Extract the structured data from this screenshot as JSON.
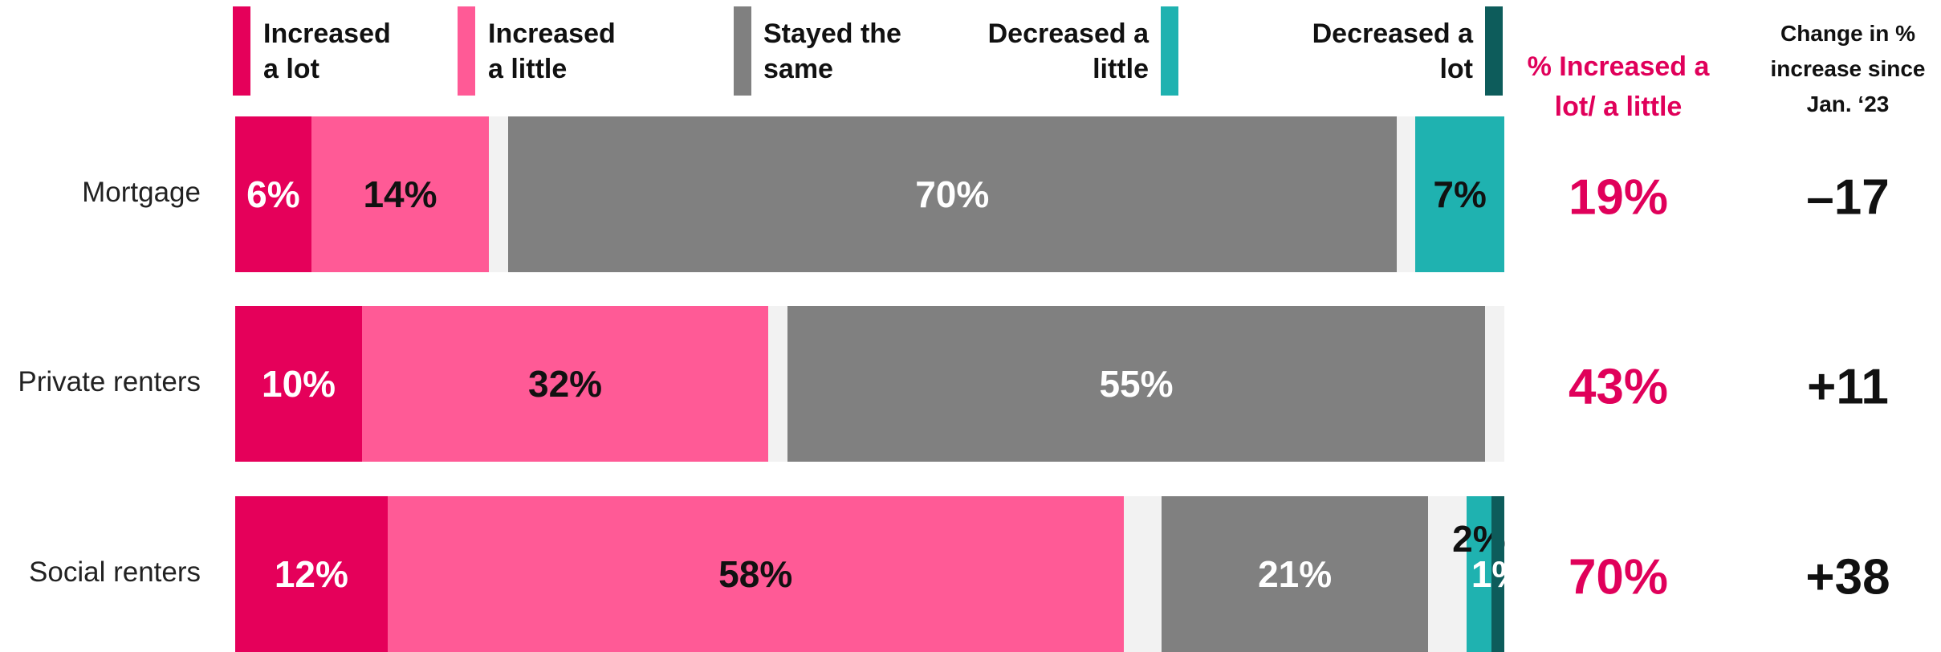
{
  "chart_data": {
    "type": "stacked_bar",
    "categories": [
      "Mortgage",
      "Private renters",
      "Social renters"
    ],
    "xlim": [
      0,
      100
    ],
    "background_color": "#f2f2f2",
    "series": [
      {
        "name": "Increased a lot",
        "color": "#e5005a",
        "label_color": "#ffffff",
        "values": [
          6,
          10,
          12
        ],
        "value_labels": [
          "6%",
          "10%",
          "12%"
        ]
      },
      {
        "name": "Increased a little",
        "color": "#ff5a96",
        "label_color": "#111111",
        "values": [
          14,
          32,
          58
        ],
        "value_labels": [
          "14%",
          "32%",
          "58%"
        ]
      },
      {
        "name": "Stayed the same",
        "color": "#808080",
        "label_color": "#ffffff",
        "values": [
          70,
          55,
          21
        ],
        "value_labels": [
          "70%",
          "55%",
          "21%"
        ]
      },
      {
        "name": "Decreased a little",
        "color": "#1fb2b0",
        "label_color": "#111111",
        "values": [
          7,
          0,
          2
        ],
        "value_labels": [
          "7%",
          null,
          "2%"
        ]
      },
      {
        "name": "Decreased a lot",
        "color": "#0d5c5b",
        "label_color": "#ffffff",
        "values": [
          0,
          0,
          1
        ],
        "value_labels": [
          null,
          null,
          "1%"
        ]
      }
    ],
    "summary_columns": [
      {
        "title": "% Increased a lot/ a little",
        "title_color": "#e0005a",
        "color": "#e0005a",
        "values": [
          19,
          43,
          70
        ],
        "value_labels": [
          "19%",
          "43%",
          "70%"
        ]
      },
      {
        "title": "Change in % increase since Jan. ‘23",
        "title_color": "#111111",
        "color": "#111111",
        "values": [
          -17,
          11,
          38
        ],
        "value_labels": [
          "–17",
          "+11",
          "+38"
        ]
      }
    ]
  }
}
